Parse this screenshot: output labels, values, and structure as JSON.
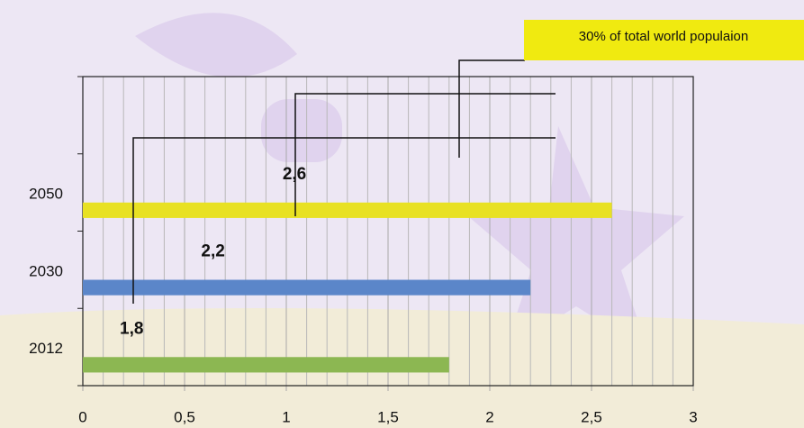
{
  "chart_data": {
    "type": "barh",
    "categories": [
      "2012",
      "2030",
      "2050",
      null
    ],
    "values": [
      1.8,
      2.2,
      2.6,
      null
    ],
    "value_labels": [
      "1,8",
      "2,2",
      "2,6",
      null
    ],
    "colors": [
      "#8cb752",
      "#5b86c9",
      "#e8e123",
      null
    ],
    "xlim": [
      0,
      3
    ],
    "xticks": [
      0,
      {
        "value": 0.5,
        "label": "0,5"
      },
      1,
      {
        "value": 1.5,
        "label": "1,5"
      },
      2,
      {
        "value": 2.5,
        "label": "2,5"
      },
      3
    ],
    "grid": true,
    "annotation": "30% of total world populaion"
  }
}
